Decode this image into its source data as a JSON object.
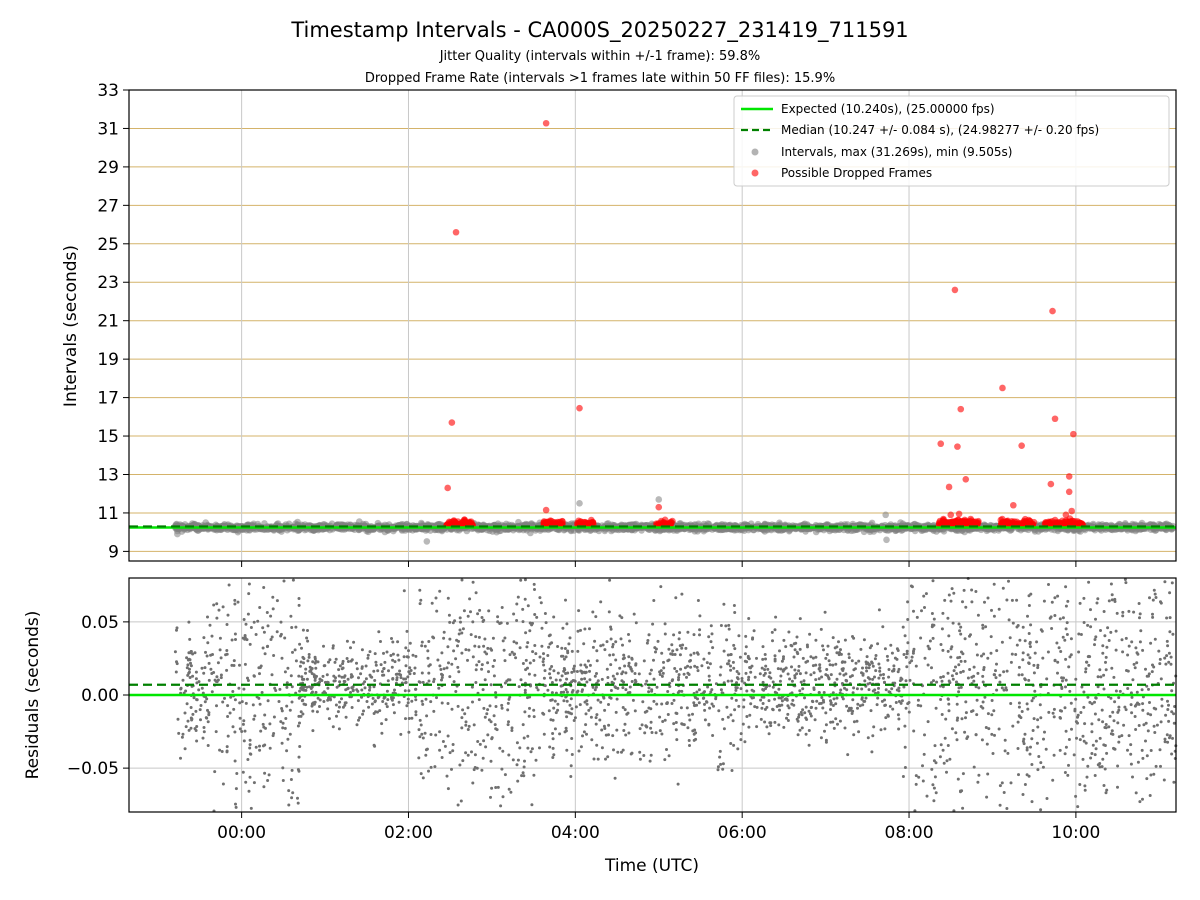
{
  "title": "Timestamp Intervals - CA000S_20250227_231419_711591",
  "subtitle_1": "Jitter Quality (intervals within +/-1 frame): 59.8%",
  "subtitle_2": "Dropped Frame Rate (intervals >1 frames late within 50 FF files): 15.9%",
  "colors": {
    "expected": "#00e600",
    "median": "#008000",
    "intervals": "#808080",
    "dropped": "#ff0000",
    "hgrid_top": "#d4b36a",
    "grid": "#c8c8c8"
  },
  "chart_data": [
    {
      "type": "scatter",
      "xlabel": "",
      "ylabel": "Intervals (seconds)",
      "xlim_hours": [
        -1.35,
        11.2
      ],
      "ylim": [
        8.5,
        33
      ],
      "yticks": [
        9,
        11,
        13,
        15,
        17,
        19,
        21,
        23,
        25,
        27,
        29,
        31,
        33
      ],
      "ytick_labels": [
        "9",
        "11",
        "13",
        "15",
        "17",
        "19",
        "21",
        "23",
        "25",
        "27",
        "29",
        "31",
        "33"
      ],
      "xticks_hours": [
        0,
        2,
        4,
        6,
        8,
        10
      ],
      "grid": true,
      "legend_position": "top-right",
      "legend": [
        {
          "label": "Expected (10.240s), (25.00000 fps)",
          "kind": "solid-line"
        },
        {
          "label": "Median (10.247 +/- 0.084 s), (24.98277 +/- 0.20 fps)",
          "kind": "dashed-line"
        },
        {
          "label": "Intervals, max (31.269s), min (9.505s)",
          "kind": "gray-dot"
        },
        {
          "label": "Possible Dropped Frames",
          "kind": "red-dot"
        }
      ],
      "expected_value": 10.24,
      "median_value": 10.247,
      "intervals_range_hours": [
        -0.8,
        11.2
      ],
      "intervals_max": 31.269,
      "intervals_min": 9.505,
      "gray_outliers": [
        {
          "x": 2.22,
          "y": 9.52
        },
        {
          "x": 4.05,
          "y": 11.5
        },
        {
          "x": 5.0,
          "y": 11.7
        },
        {
          "x": 7.72,
          "y": 10.9
        },
        {
          "x": 7.73,
          "y": 9.6
        },
        {
          "x": -0.77,
          "y": 9.9
        }
      ],
      "dropped_clusters": [
        {
          "from": 2.45,
          "to": 2.78
        },
        {
          "from": 3.62,
          "to": 3.85
        },
        {
          "from": 4.02,
          "to": 4.22
        },
        {
          "from": 4.97,
          "to": 5.17
        },
        {
          "from": 8.35,
          "to": 8.85
        },
        {
          "from": 9.1,
          "to": 9.5
        },
        {
          "from": 9.62,
          "to": 10.1
        }
      ],
      "dropped_outliers": [
        {
          "x": 2.47,
          "y": 12.3
        },
        {
          "x": 2.52,
          "y": 15.7
        },
        {
          "x": 2.57,
          "y": 25.6
        },
        {
          "x": 3.65,
          "y": 31.27
        },
        {
          "x": 3.65,
          "y": 11.15
        },
        {
          "x": 4.05,
          "y": 16.45
        },
        {
          "x": 5.0,
          "y": 11.3
        },
        {
          "x": 8.38,
          "y": 14.6
        },
        {
          "x": 8.48,
          "y": 12.35
        },
        {
          "x": 8.55,
          "y": 22.6
        },
        {
          "x": 8.58,
          "y": 14.45
        },
        {
          "x": 8.62,
          "y": 16.4
        },
        {
          "x": 8.68,
          "y": 12.75
        },
        {
          "x": 8.5,
          "y": 10.9
        },
        {
          "x": 8.6,
          "y": 10.95
        },
        {
          "x": 9.12,
          "y": 17.5
        },
        {
          "x": 9.25,
          "y": 11.4
        },
        {
          "x": 9.35,
          "y": 14.5
        },
        {
          "x": 9.72,
          "y": 21.5
        },
        {
          "x": 9.75,
          "y": 15.9
        },
        {
          "x": 9.7,
          "y": 12.5
        },
        {
          "x": 9.92,
          "y": 12.9
        },
        {
          "x": 9.92,
          "y": 12.1
        },
        {
          "x": 9.97,
          "y": 15.1
        },
        {
          "x": 9.95,
          "y": 11.1
        },
        {
          "x": 9.88,
          "y": 10.9
        }
      ]
    },
    {
      "type": "scatter",
      "xlabel": "Time (UTC)",
      "ylabel": "Residuals (seconds)",
      "xlim_hours": [
        -1.35,
        11.2
      ],
      "ylim": [
        -0.08,
        0.08
      ],
      "yticks": [
        -0.05,
        0.0,
        0.05
      ],
      "ytick_labels": [
        "−0.05",
        "0.00",
        "0.05"
      ],
      "xticks_hours": [
        0,
        2,
        4,
        6,
        8,
        10
      ],
      "xtick_labels": [
        "00:00",
        "02:00",
        "04:00",
        "06:00",
        "08:00",
        "10:00"
      ],
      "grid": true,
      "expected_residual": 0.0,
      "median_residual": 0.007,
      "residual_spread": [
        {
          "from": -0.8,
          "to": -0.4,
          "sd": 0.02
        },
        {
          "from": -0.4,
          "to": 0.7,
          "sd": 0.045
        },
        {
          "from": 0.7,
          "to": 2.1,
          "sd": 0.015
        },
        {
          "from": 2.1,
          "to": 3.6,
          "sd": 0.045
        },
        {
          "from": 3.6,
          "to": 6.0,
          "sd": 0.025
        },
        {
          "from": 6.0,
          "to": 7.9,
          "sd": 0.018
        },
        {
          "from": 7.9,
          "to": 11.2,
          "sd": 0.045
        }
      ]
    }
  ]
}
